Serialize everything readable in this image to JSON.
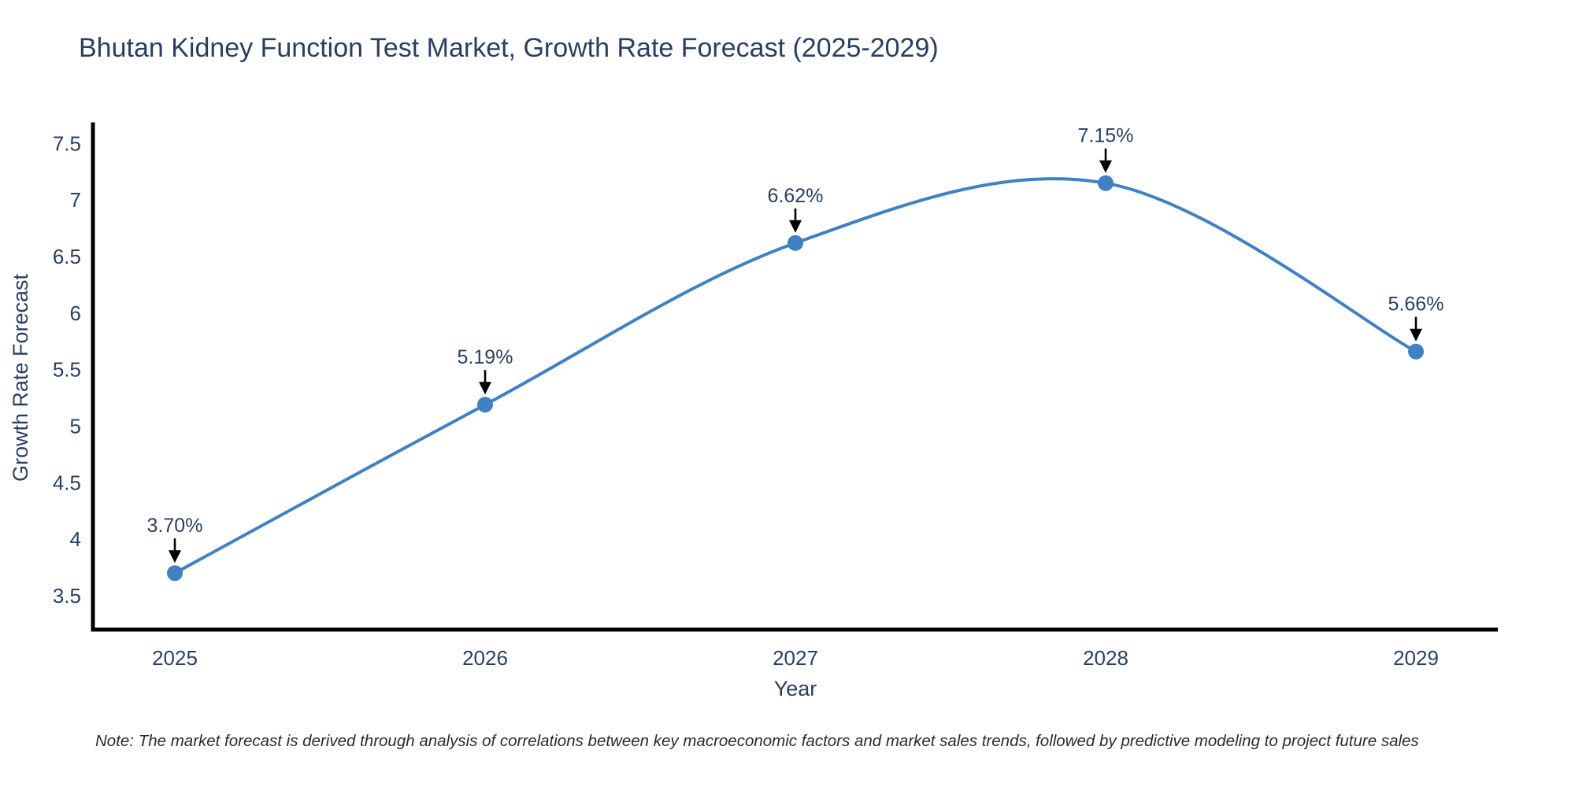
{
  "title": "Bhutan Kidney Function Test Market, Growth Rate Forecast (2025-2029)",
  "note": "Note: The market forecast is derived through analysis of correlations between key macroeconomic factors and market sales trends, followed by predictive modeling to project future sales",
  "chart_data": {
    "type": "line",
    "line_shape": "spline",
    "categories": [
      "2025",
      "2026",
      "2027",
      "2028",
      "2029"
    ],
    "values": [
      3.7,
      5.19,
      6.62,
      7.15,
      5.66
    ],
    "point_labels": [
      "3.70%",
      "5.19%",
      "6.62%",
      "7.15%",
      "5.66%"
    ],
    "title": "Bhutan Kidney Function Test Market, Growth Rate Forecast (2025-2029)",
    "xlabel": "Year",
    "ylabel": "Growth Rate Forecast",
    "yticks": [
      3.5,
      4,
      4.5,
      5,
      5.5,
      6,
      6.5,
      7,
      7.5
    ],
    "ytick_labels": [
      "3.5",
      "4",
      "4.5",
      "5",
      "5.5",
      "6",
      "6.5",
      "7",
      "7.5"
    ],
    "xlim": [
      2024.736,
      2029.264
    ],
    "ylim": [
      3.2,
      7.67
    ],
    "grid": false,
    "legend": "none",
    "colors": {
      "line": "#3f81c2",
      "marker": "#3f81c2",
      "arrow": "#000000",
      "text": "#2a3f5f",
      "axis": "#000000"
    }
  }
}
